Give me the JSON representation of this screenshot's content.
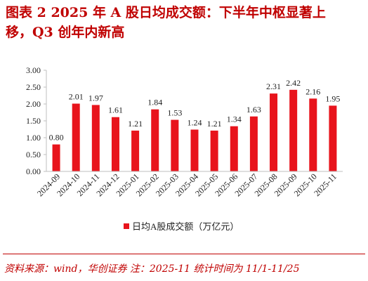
{
  "title": {
    "line1": "图表 2    2025 年 A 股日均成交额：下半年中枢显著上",
    "line2": "移，Q3 创年内新高"
  },
  "source": "资料来源：wind，华创证券  注：2025-11 统计时间为 11/1-11/25",
  "colors": {
    "bar": "#e8141c",
    "title": "#c00000",
    "axis": "#bfbfbf"
  },
  "chart_data": {
    "type": "bar",
    "categories": [
      "2024-09",
      "2024-10",
      "2024-11",
      "2024-12",
      "2025-01",
      "2025-02",
      "2025-03",
      "2025-04",
      "2025-05",
      "2025-06",
      "2025-07",
      "2025-08",
      "2025-09",
      "2025-10",
      "2025-11"
    ],
    "series": [
      {
        "name": "日均A股成交额（万亿元）",
        "values": [
          0.8,
          2.01,
          1.97,
          1.61,
          1.21,
          1.84,
          1.53,
          1.24,
          1.21,
          1.34,
          1.63,
          2.31,
          2.42,
          2.16,
          1.95
        ]
      }
    ],
    "data_labels": [
      "0.80",
      "2.01",
      "1.97",
      "1.61",
      "1.21",
      "1.84",
      "1.53",
      "1.24",
      "1.21",
      "1.34",
      "1.63",
      "2.31",
      "2.42",
      "2.16",
      "1.95"
    ],
    "yticks": [
      "0.00",
      "0.50",
      "1.00",
      "1.50",
      "2.00",
      "2.50",
      "3.00"
    ],
    "ylim": [
      0,
      3
    ],
    "grid": false,
    "legend": "bottom-center"
  }
}
